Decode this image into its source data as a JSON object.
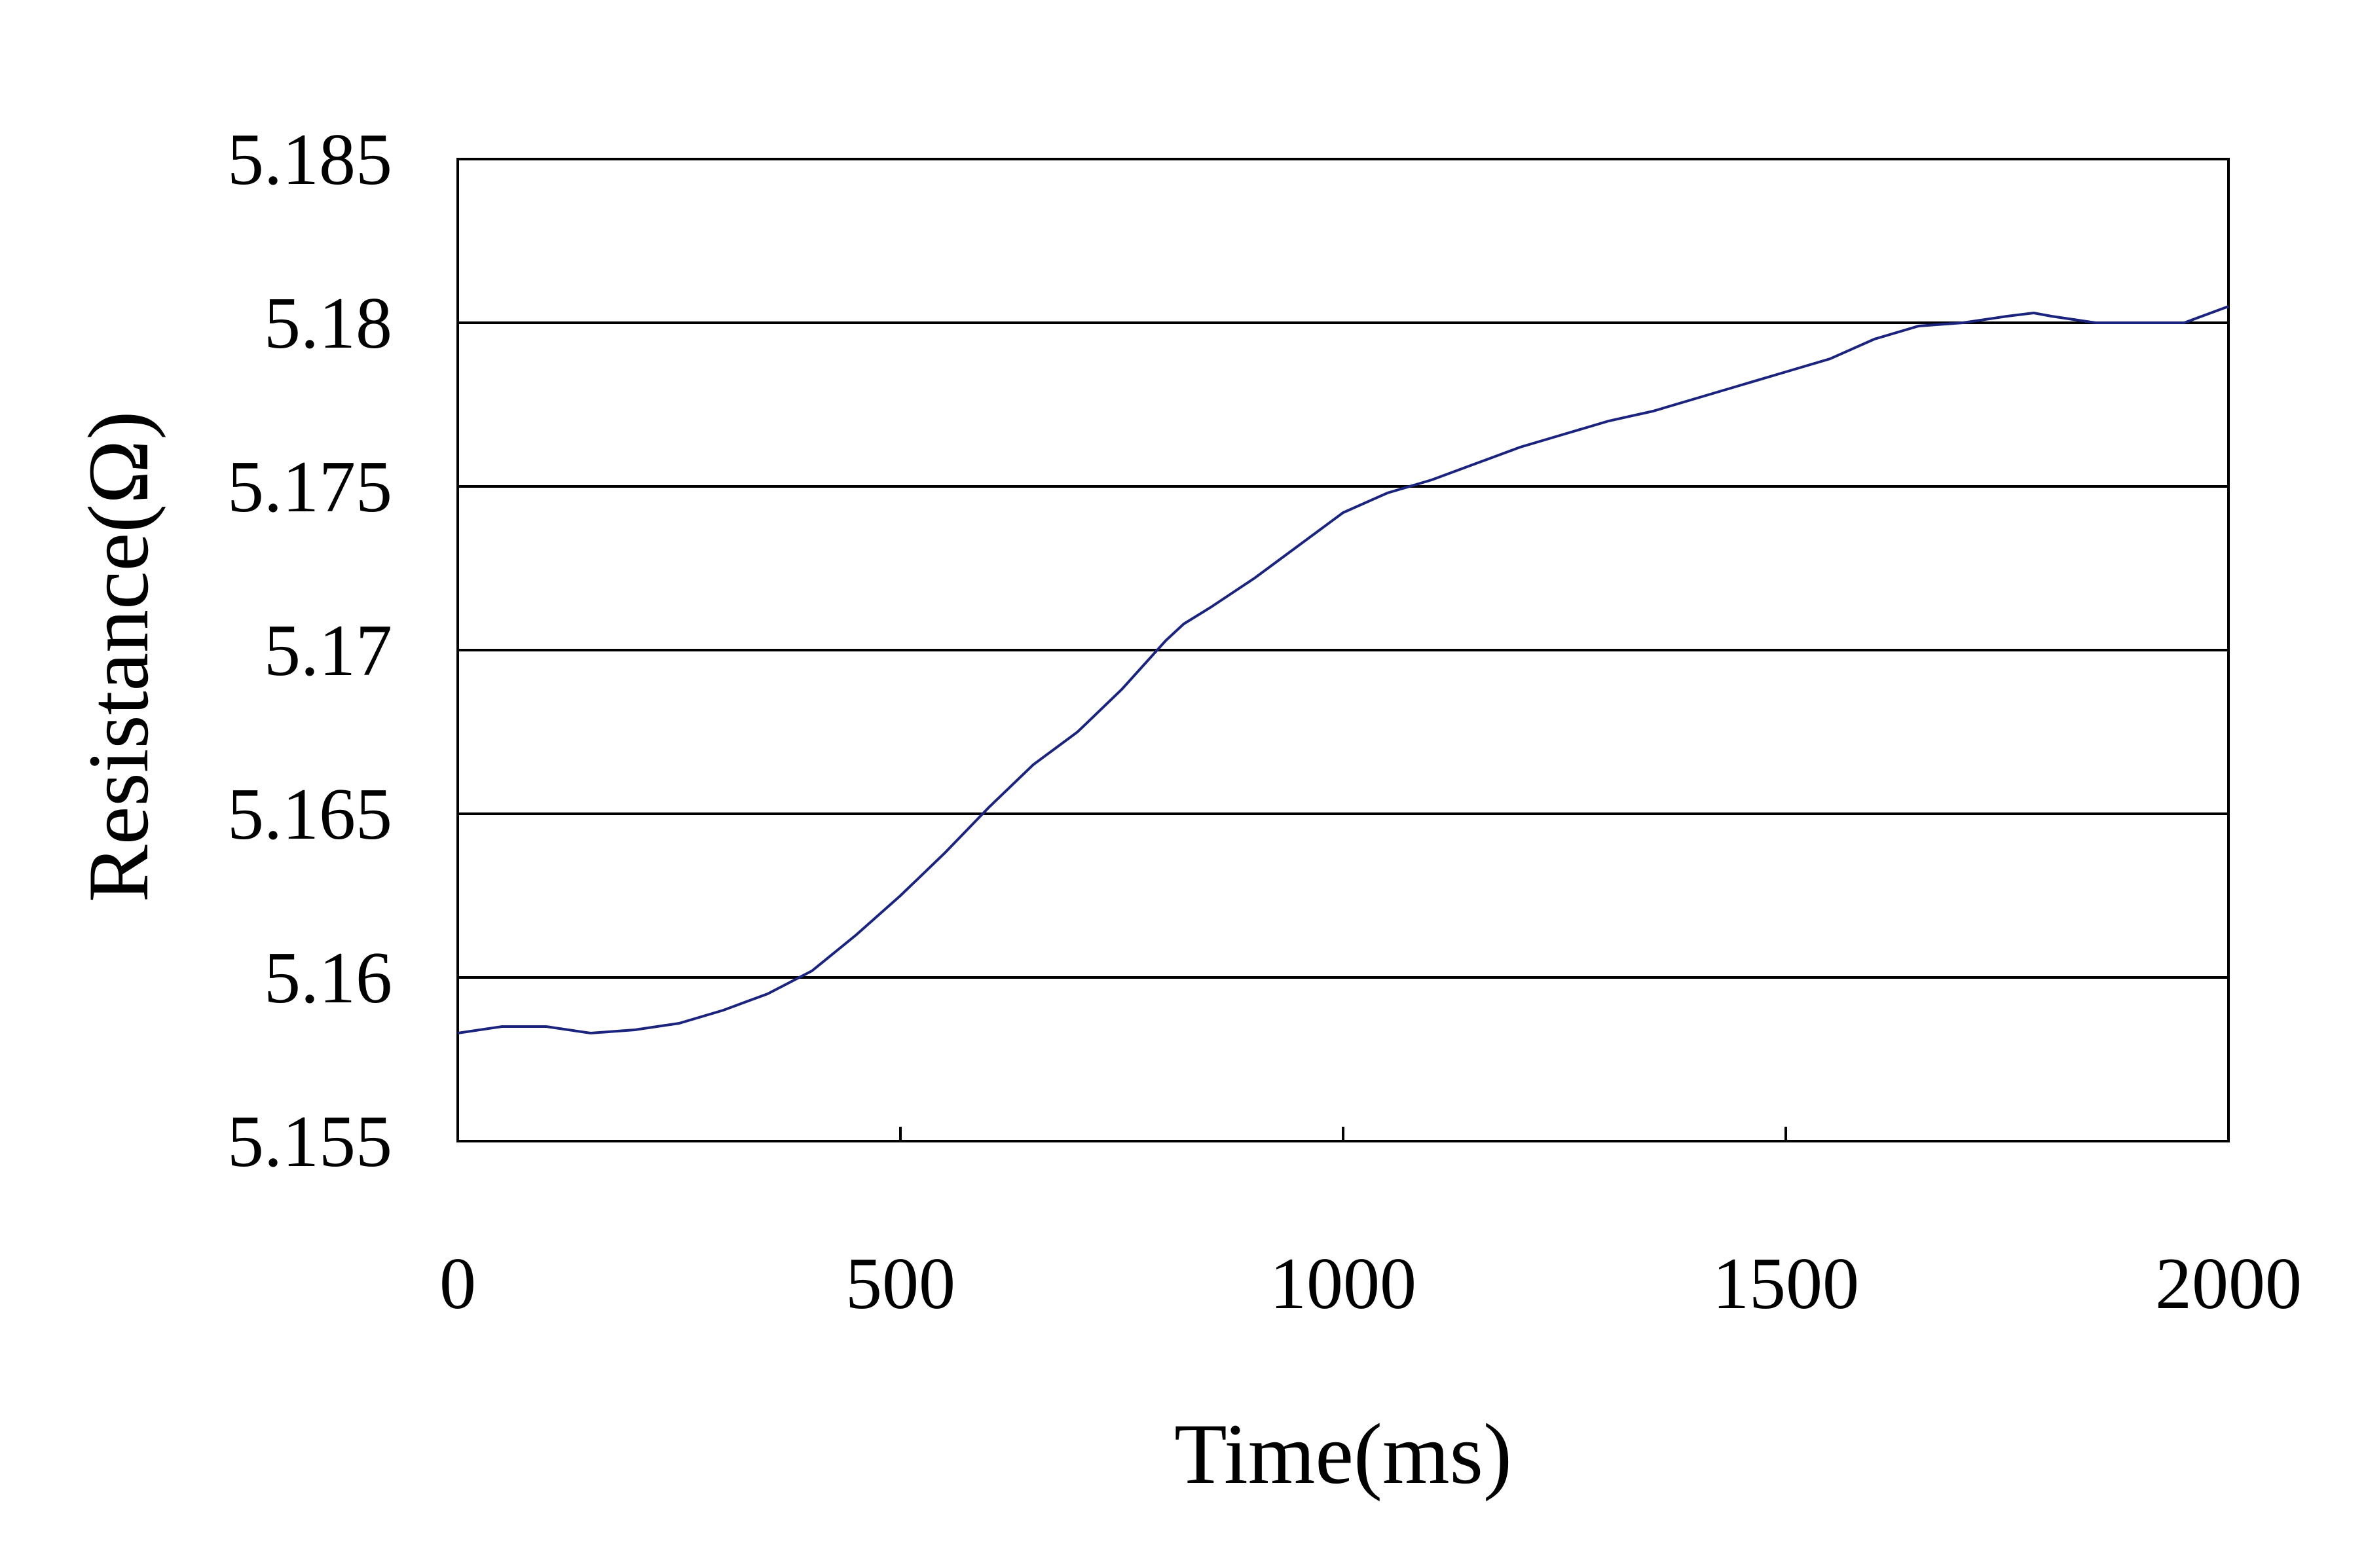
{
  "chart_data": {
    "type": "line",
    "title": "",
    "xlabel": "Time(ms)",
    "ylabel": "Resistance(Ω)",
    "xlim": [
      0,
      2000
    ],
    "ylim": [
      5.155,
      5.185
    ],
    "x_ticks": [
      "0",
      "500",
      "1000",
      "1500",
      "2000"
    ],
    "y_ticks": [
      "5.155",
      "5.16",
      "5.165",
      "5.17",
      "5.175",
      "5.18",
      "5.185"
    ],
    "grid": "horizontal",
    "line_color": "#1a237e",
    "series": [
      {
        "x": [
          0,
          50,
          100,
          150,
          200,
          250,
          300,
          350,
          400,
          450,
          500,
          550,
          600,
          650,
          700,
          750,
          800,
          820,
          850,
          900,
          950,
          975,
          1000,
          1050,
          1100,
          1150,
          1200,
          1250,
          1300,
          1350,
          1400,
          1450,
          1500,
          1550,
          1600,
          1650,
          1700,
          1750,
          1780,
          1800,
          1850,
          1900,
          1950,
          2000
        ],
        "y": [
          5.1583,
          5.1585,
          5.1585,
          5.1583,
          5.1584,
          5.1586,
          5.159,
          5.1595,
          5.1602,
          5.1613,
          5.1625,
          5.1638,
          5.1652,
          5.1665,
          5.1675,
          5.1688,
          5.1703,
          5.1708,
          5.1713,
          5.1722,
          5.1732,
          5.1737,
          5.1742,
          5.1748,
          5.1752,
          5.1757,
          5.1762,
          5.1766,
          5.177,
          5.1773,
          5.1777,
          5.1781,
          5.1785,
          5.1789,
          5.1795,
          5.1799,
          5.18,
          5.1802,
          5.1803,
          5.1802,
          5.18,
          5.18,
          5.18,
          5.1805
        ]
      }
    ]
  }
}
